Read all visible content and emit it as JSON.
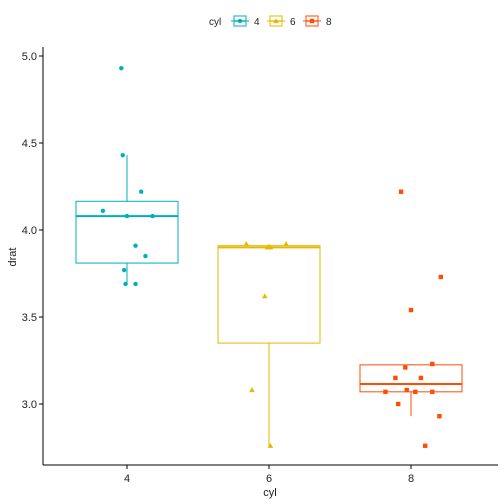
{
  "chart_data": {
    "type": "boxplot",
    "xlabel": "cyl",
    "ylabel": "drat",
    "categories": [
      "4",
      "6",
      "8"
    ],
    "ylim": [
      2.66,
      5.03
    ],
    "yticks": [
      3.0,
      3.5,
      4.0,
      4.5,
      5.0
    ],
    "ytick_labels": [
      "3.0",
      "3.5",
      "4.0",
      "4.5",
      "5.0"
    ],
    "grid": false,
    "legend": {
      "title": "cyl",
      "position": "top",
      "entries": [
        "4",
        "6",
        "8"
      ]
    },
    "colors": {
      "4": "#00AFBB",
      "6": "#E7B800",
      "8": "#FC4E07"
    },
    "series": [
      {
        "category": "4",
        "marker": "circle",
        "box": {
          "min": 3.69,
          "q1": 3.81,
          "median": 4.08,
          "q3": 4.165,
          "max": 4.43
        },
        "points": [
          {
            "x": 0.96,
            "y": 4.93
          },
          {
            "x": 0.97,
            "y": 4.43
          },
          {
            "x": 1.1,
            "y": 4.22
          },
          {
            "x": 0.83,
            "y": 4.11
          },
          {
            "x": 1.0,
            "y": 4.08
          },
          {
            "x": 1.18,
            "y": 4.08
          },
          {
            "x": 1.06,
            "y": 3.91
          },
          {
            "x": 1.13,
            "y": 3.85
          },
          {
            "x": 0.98,
            "y": 3.77
          },
          {
            "x": 0.99,
            "y": 3.69
          },
          {
            "x": 1.06,
            "y": 3.69
          }
        ]
      },
      {
        "category": "6",
        "marker": "triangle",
        "box": {
          "min": 2.76,
          "q1": 3.35,
          "median": 3.9,
          "q3": 3.91,
          "max": 3.92
        },
        "points": [
          {
            "x": 1.84,
            "y": 3.92
          },
          {
            "x": 2.12,
            "y": 3.92
          },
          {
            "x": 1.99,
            "y": 3.9
          },
          {
            "x": 2.01,
            "y": 3.9
          },
          {
            "x": 1.97,
            "y": 3.62
          },
          {
            "x": 1.88,
            "y": 3.08
          },
          {
            "x": 2.01,
            "y": 2.76
          }
        ]
      },
      {
        "category": "8",
        "marker": "square",
        "box": {
          "min": 2.93,
          "q1": 3.07,
          "median": 3.115,
          "q3": 3.225,
          "max": 3.23
        },
        "points": [
          {
            "x": 2.93,
            "y": 4.22
          },
          {
            "x": 3.21,
            "y": 3.73
          },
          {
            "x": 3.0,
            "y": 3.54
          },
          {
            "x": 3.15,
            "y": 3.23
          },
          {
            "x": 2.96,
            "y": 3.21
          },
          {
            "x": 2.89,
            "y": 3.15
          },
          {
            "x": 3.07,
            "y": 3.15
          },
          {
            "x": 2.97,
            "y": 3.08
          },
          {
            "x": 3.15,
            "y": 3.07
          },
          {
            "x": 2.82,
            "y": 3.07
          },
          {
            "x": 3.03,
            "y": 3.07
          },
          {
            "x": 2.91,
            "y": 3.0
          },
          {
            "x": 3.2,
            "y": 2.93
          },
          {
            "x": 3.1,
            "y": 2.76
          }
        ]
      }
    ]
  }
}
